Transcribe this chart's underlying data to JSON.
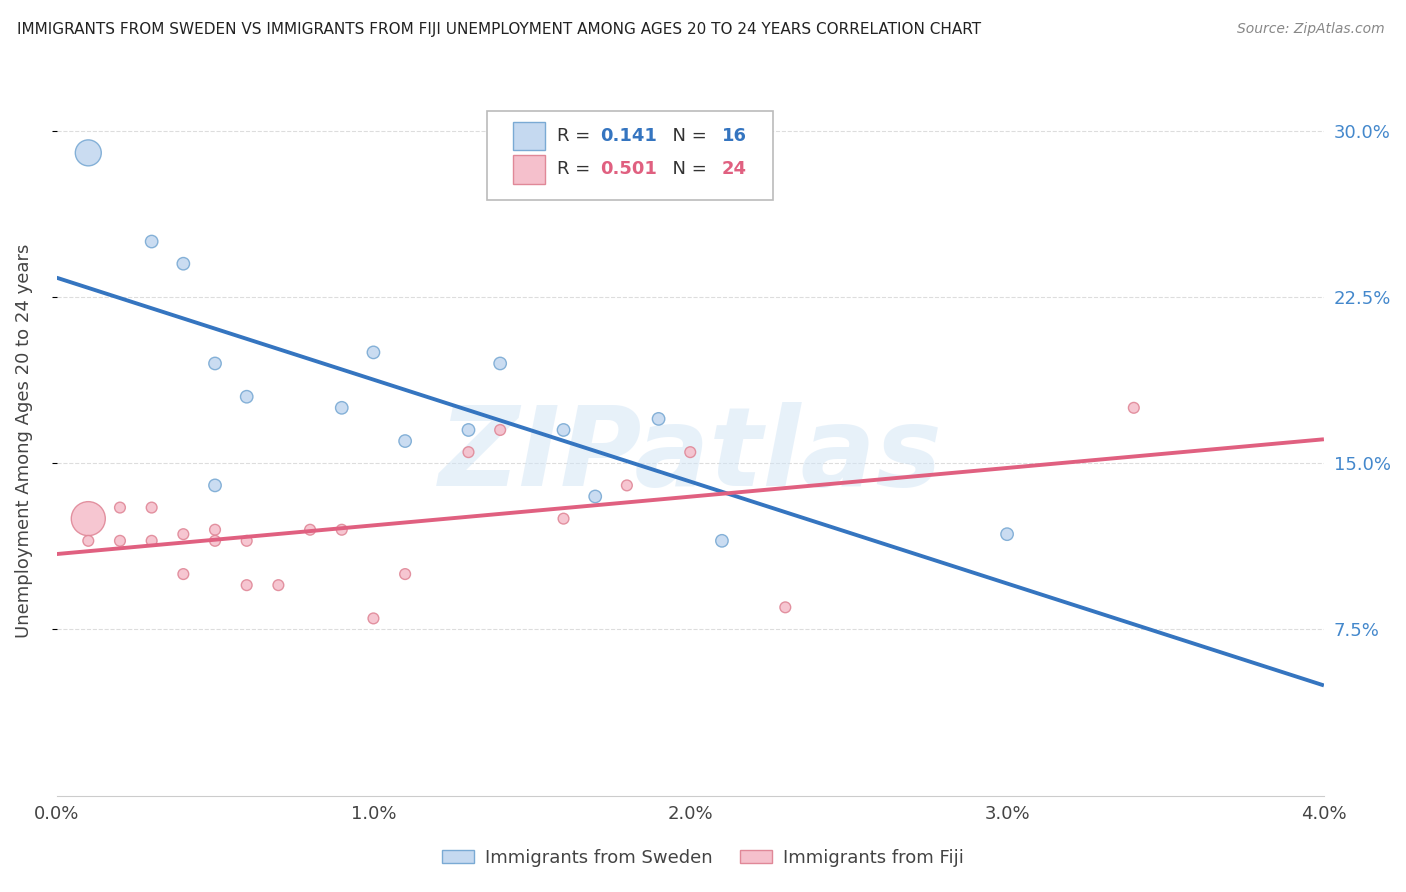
{
  "title": "IMMIGRANTS FROM SWEDEN VS IMMIGRANTS FROM FIJI UNEMPLOYMENT AMONG AGES 20 TO 24 YEARS CORRELATION CHART",
  "source": "Source: ZipAtlas.com",
  "ylabel": "Unemployment Among Ages 20 to 24 years",
  "watermark": "ZIPatlas",
  "xlim": [
    0.0,
    0.04
  ],
  "ylim": [
    0.0,
    0.32
  ],
  "yticks": [
    0.075,
    0.15,
    0.225,
    0.3
  ],
  "ytick_labels": [
    "7.5%",
    "15.0%",
    "22.5%",
    "30.0%"
  ],
  "xticks": [
    0.0,
    0.01,
    0.02,
    0.03,
    0.04
  ],
  "xtick_labels": [
    "0.0%",
    "1.0%",
    "2.0%",
    "3.0%",
    "4.0%"
  ],
  "color_sweden_fill": "#c5d9f0",
  "color_sweden_edge": "#7aaad4",
  "color_fiji_fill": "#f5c0cc",
  "color_fiji_edge": "#e08898",
  "color_sweden_line": "#3575c0",
  "color_fiji_line": "#e06080",
  "sweden_x": [
    0.001,
    0.003,
    0.004,
    0.005,
    0.005,
    0.006,
    0.009,
    0.01,
    0.011,
    0.013,
    0.014,
    0.016,
    0.017,
    0.019,
    0.021,
    0.03
  ],
  "sweden_y": [
    0.29,
    0.25,
    0.24,
    0.195,
    0.14,
    0.18,
    0.175,
    0.2,
    0.16,
    0.165,
    0.195,
    0.165,
    0.135,
    0.17,
    0.115,
    0.118
  ],
  "fiji_x": [
    0.001,
    0.001,
    0.002,
    0.002,
    0.003,
    0.003,
    0.004,
    0.004,
    0.005,
    0.005,
    0.006,
    0.006,
    0.007,
    0.008,
    0.009,
    0.01,
    0.011,
    0.013,
    0.014,
    0.016,
    0.018,
    0.02,
    0.023,
    0.034
  ],
  "fiji_y": [
    0.125,
    0.115,
    0.13,
    0.115,
    0.115,
    0.13,
    0.118,
    0.1,
    0.12,
    0.115,
    0.095,
    0.115,
    0.095,
    0.12,
    0.12,
    0.08,
    0.1,
    0.155,
    0.165,
    0.125,
    0.14,
    0.155,
    0.085,
    0.175
  ],
  "sweden_sizes_base": 80,
  "sweden_large_idx": 0,
  "sweden_large_size": 350,
  "fiji_large_idx": 0,
  "fiji_large_size": 600,
  "fiji_sizes_base": 60,
  "background_color": "#ffffff",
  "grid_color": "#dddddd",
  "right_axis_color": "#4488cc",
  "text_color": "#444444",
  "r_sweden": "0.141",
  "n_sweden": "16",
  "r_fiji": "0.501",
  "n_fiji": "24"
}
